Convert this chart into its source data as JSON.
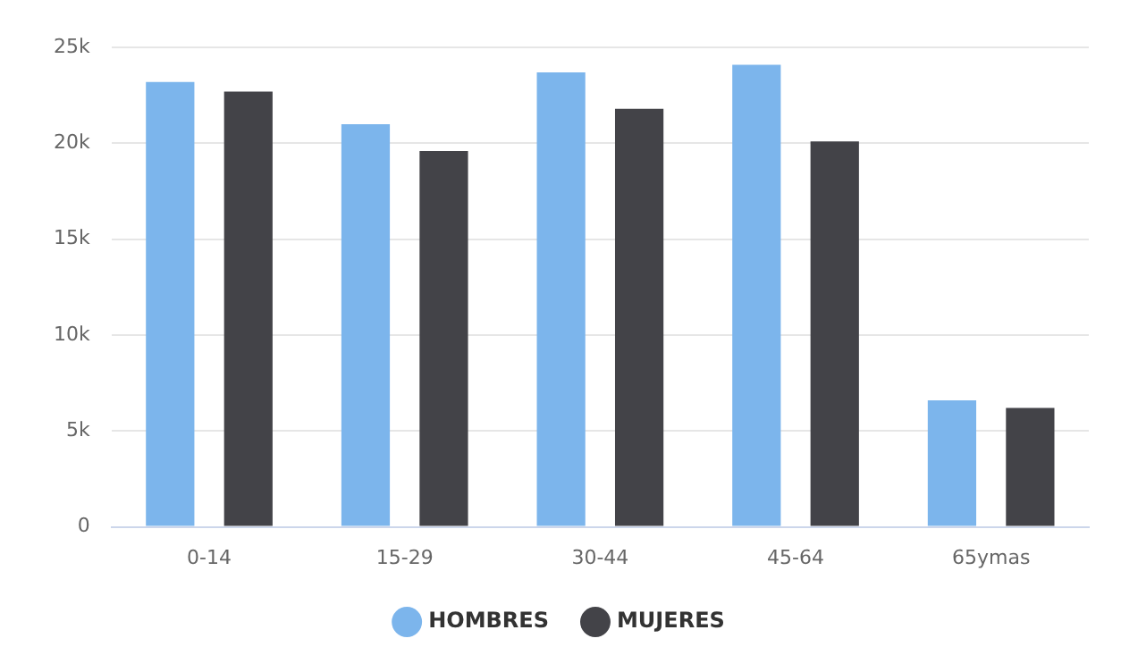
{
  "chart_data": {
    "type": "bar",
    "categories": [
      "0-14",
      "15-29",
      "30-44",
      "45-64",
      "65ymas"
    ],
    "series": [
      {
        "name": "HOMBRES",
        "color": "#7cb5ec",
        "values": [
          23200,
          21000,
          23700,
          24100,
          6600
        ]
      },
      {
        "name": "MUJERES",
        "color": "#434348",
        "values": [
          22700,
          19600,
          21800,
          20100,
          6200
        ]
      }
    ],
    "ylim": [
      0,
      25000
    ],
    "yticks": [
      0,
      {
        "value": 5000,
        "label": "5k"
      },
      {
        "value": 10000,
        "label": "10k"
      },
      {
        "value": 15000,
        "label": "15k"
      },
      {
        "value": 20000,
        "label": "20k"
      },
      {
        "value": 25000,
        "label": "25k"
      }
    ],
    "grid": "y",
    "legend": "bottom"
  }
}
